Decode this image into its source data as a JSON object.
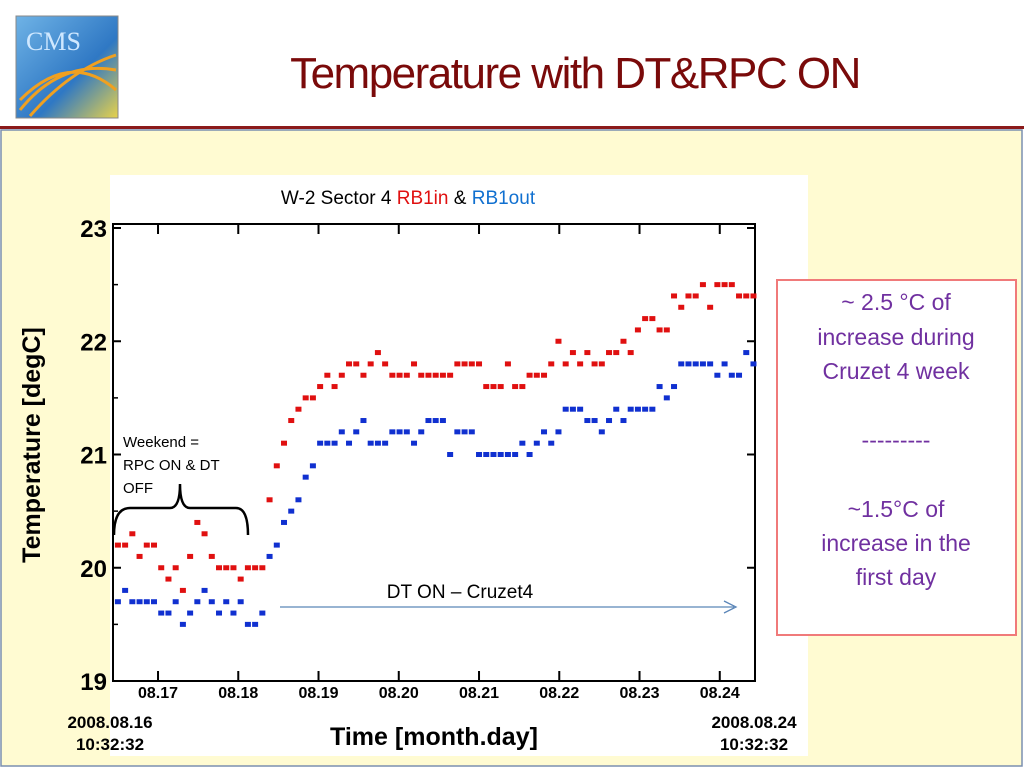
{
  "slide": {
    "title": "Temperature with DT&RPC ON",
    "logo": "CMS",
    "note": {
      "lines": [
        "~ 2.5 °C of",
        "increase during",
        "Cruzet 4 week",
        "---------",
        "~1.5°C of",
        "increase in the",
        "first day"
      ]
    }
  },
  "chart_data": {
    "type": "scatter",
    "title": "W-2 Sector 4",
    "title_joiner": "&",
    "xlabel": "Time  [month.day]",
    "ylabel": "Temperature  [degC]",
    "x_start_label": [
      "2008.08.16",
      "10:32:32"
    ],
    "x_end_label": [
      "2008.08.24",
      "10:32:32"
    ],
    "xlim": [
      16.439,
      24.439
    ],
    "xticks": [
      {
        "value": 17,
        "label": "08.17"
      },
      {
        "value": 18,
        "label": "08.18"
      },
      {
        "value": 19,
        "label": "08.19"
      },
      {
        "value": 20,
        "label": "08.20"
      },
      {
        "value": 21,
        "label": "08.21"
      },
      {
        "value": 22,
        "label": "08.22"
      },
      {
        "value": 23,
        "label": "08.23"
      },
      {
        "value": 24,
        "label": "08.24"
      }
    ],
    "ylim": [
      19,
      23
    ],
    "yticks": [
      19,
      20,
      21,
      22,
      23
    ],
    "yminorticks": [
      19.5,
      20.5,
      21.5,
      22.5
    ],
    "annotations": [
      {
        "lines": [
          "Weekend =",
          "RPC ON & DT",
          "OFF"
        ]
      },
      {
        "text": "DT ON – Cruzet4"
      }
    ],
    "x": [
      16.5,
      16.59,
      16.68,
      16.77,
      16.86,
      16.95,
      17.04,
      17.13,
      17.22,
      17.31,
      17.4,
      17.49,
      17.58,
      17.67,
      17.76,
      17.85,
      17.94,
      18.03,
      18.12,
      18.21,
      18.3,
      18.39,
      18.48,
      18.57,
      18.66,
      18.75,
      18.84,
      18.93,
      19.02,
      19.11,
      19.2,
      19.29,
      19.38,
      19.47,
      19.56,
      19.65,
      19.74,
      19.83,
      19.92,
      20.01,
      20.1,
      20.19,
      20.28,
      20.37,
      20.46,
      20.55,
      20.64,
      20.73,
      20.82,
      20.91,
      21.0,
      21.09,
      21.18,
      21.27,
      21.36,
      21.45,
      21.54,
      21.63,
      21.72,
      21.81,
      21.9,
      21.99,
      22.08,
      22.17,
      22.26,
      22.35,
      22.44,
      22.53,
      22.62,
      22.71,
      22.8,
      22.89,
      22.98,
      23.07,
      23.16,
      23.25,
      23.34,
      23.43,
      23.52,
      23.61,
      23.7,
      23.79,
      23.88,
      23.97,
      24.06,
      24.15,
      24.24,
      24.33,
      24.42
    ],
    "series": [
      {
        "name": "RB1in",
        "color": "#e01010",
        "values": [
          20.2,
          20.2,
          20.3,
          20.1,
          20.2,
          20.2,
          20.0,
          19.9,
          20.0,
          19.8,
          20.1,
          20.4,
          20.3,
          20.1,
          20.0,
          20.0,
          20.0,
          19.9,
          20.0,
          20.0,
          20.0,
          20.6,
          20.9,
          21.1,
          21.3,
          21.4,
          21.5,
          21.5,
          21.6,
          21.7,
          21.6,
          21.7,
          21.8,
          21.8,
          21.7,
          21.8,
          21.9,
          21.8,
          21.7,
          21.7,
          21.7,
          21.8,
          21.7,
          21.7,
          21.7,
          21.7,
          21.7,
          21.8,
          21.8,
          21.8,
          21.8,
          21.6,
          21.6,
          21.6,
          21.8,
          21.6,
          21.6,
          21.7,
          21.7,
          21.7,
          21.8,
          22.0,
          21.8,
          21.9,
          21.8,
          21.9,
          21.8,
          21.8,
          21.9,
          21.9,
          22.0,
          21.9,
          22.1,
          22.2,
          22.2,
          22.1,
          22.1,
          22.4,
          22.3,
          22.4,
          22.4,
          22.5,
          22.3,
          22.5,
          22.5,
          22.5,
          22.4,
          22.4,
          22.4
        ]
      },
      {
        "name": "RB1out",
        "color": "#1030d0",
        "values": [
          19.7,
          19.8,
          19.7,
          19.7,
          19.7,
          19.7,
          19.6,
          19.6,
          19.7,
          19.5,
          19.6,
          19.7,
          19.8,
          19.7,
          19.6,
          19.7,
          19.6,
          19.7,
          19.5,
          19.5,
          19.6,
          20.1,
          20.2,
          20.4,
          20.5,
          20.6,
          20.8,
          20.9,
          21.1,
          21.1,
          21.1,
          21.2,
          21.1,
          21.2,
          21.3,
          21.1,
          21.1,
          21.1,
          21.2,
          21.2,
          21.2,
          21.1,
          21.2,
          21.3,
          21.3,
          21.3,
          21.0,
          21.2,
          21.2,
          21.2,
          21.0,
          21.0,
          21.0,
          21.0,
          21.0,
          21.0,
          21.1,
          21.0,
          21.1,
          21.2,
          21.1,
          21.2,
          21.4,
          21.4,
          21.4,
          21.3,
          21.3,
          21.2,
          21.3,
          21.4,
          21.3,
          21.4,
          21.4,
          21.4,
          21.4,
          21.6,
          21.5,
          21.6,
          21.8,
          21.8,
          21.8,
          21.8,
          21.8,
          21.7,
          21.8,
          21.7,
          21.7,
          21.9,
          21.8
        ]
      }
    ]
  }
}
